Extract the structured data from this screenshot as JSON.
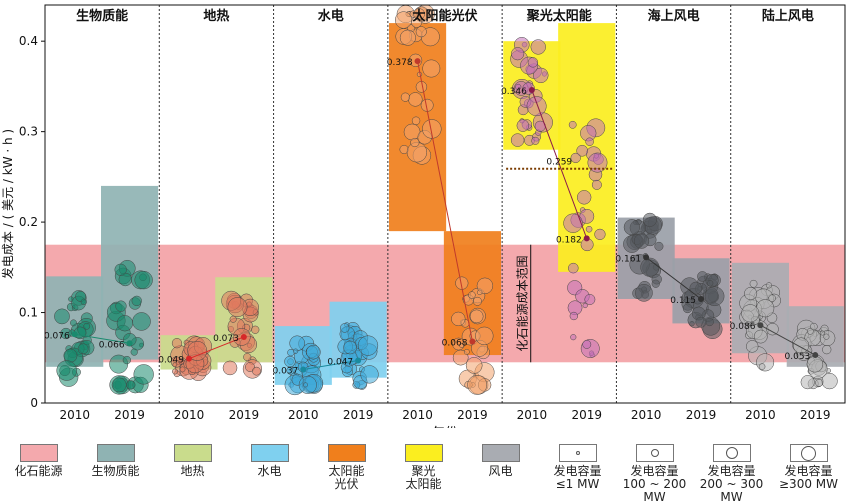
{
  "chart_data": {
    "type": "scatter",
    "ylabel": "发电成本 / ( 美元 / kW · h )",
    "xlabel": "年份",
    "ylim": [
      0,
      0.44
    ],
    "yticks": [
      "0",
      "0.1",
      "0.2",
      "0.3",
      "0.4"
    ],
    "grid": false,
    "legend_placement": "bottom",
    "fossil_range": [
      0.045,
      0.175
    ],
    "fossil_range_label": "化石能源成本范围",
    "panels": [
      {
        "name": "生物质能",
        "color": "#1a8a6e",
        "box_color": "#8fb3b3",
        "years": [
          "2010",
          "2019"
        ],
        "medians": [
          0.076,
          0.066
        ],
        "median_labels": [
          "0.076",
          "0.066"
        ],
        "boxes": [
          [
            0.04,
            0.14
          ],
          [
            0.048,
            0.24
          ]
        ],
        "median_marker_color": "#1a8a6e"
      },
      {
        "name": "地热",
        "color": "#e07a5f",
        "box_color": "#c9dc8c",
        "years": [
          "2010",
          "2019"
        ],
        "medians": [
          0.049,
          0.073
        ],
        "median_labels": [
          "0.049",
          "0.073"
        ],
        "boxes": [
          [
            0.037,
            0.075
          ],
          [
            0.045,
            0.139
          ]
        ],
        "median_marker_color": "#d62728"
      },
      {
        "name": "水电",
        "color": "#3fa9d9",
        "box_color": "#7fd0ef",
        "years": [
          "2010",
          "2019"
        ],
        "medians": [
          0.037,
          0.047
        ],
        "median_labels": [
          "0.037",
          "0.047"
        ],
        "boxes": [
          [
            0.02,
            0.085
          ],
          [
            0.028,
            0.112
          ]
        ],
        "median_marker_color": "#1a8a9e"
      },
      {
        "name": "太阳能光伏",
        "color": "#f2a36b",
        "box_color": "#f07f1c",
        "years": [
          "2010",
          "2019"
        ],
        "medians": [
          0.378,
          0.068
        ],
        "median_labels": [
          "0.378",
          "0.068"
        ],
        "boxes": [
          [
            0.19,
            0.42
          ],
          [
            0.053,
            0.19
          ]
        ],
        "median_marker_color": "#c0392b"
      },
      {
        "name": "聚光太阳能",
        "color": "#c26fb8",
        "box_color": "#fbee1f",
        "years": [
          "2010",
          "2019"
        ],
        "medians": [
          0.346,
          0.182
        ],
        "median_labels": [
          "0.346",
          "0.182"
        ],
        "boxes": [
          [
            0.28,
            0.4
          ],
          [
            0.145,
            0.42
          ]
        ],
        "median_marker_color": "#8b1a4a",
        "extra_line": {
          "value": 0.259,
          "label": "0.259"
        }
      },
      {
        "name": "海上风电",
        "color": "#555a5f",
        "box_color": "#9aa0a8",
        "years": [
          "2010",
          "2019"
        ],
        "medians": [
          0.161,
          0.115
        ],
        "median_labels": [
          "0.161",
          "0.115"
        ],
        "boxes": [
          [
            0.115,
            0.205
          ],
          [
            0.088,
            0.16
          ]
        ],
        "median_marker_color": "#333"
      },
      {
        "name": "陆上风电",
        "color": "#b5b5b5",
        "box_color": "#a9acb2",
        "years": [
          "2010",
          "2019"
        ],
        "medians": [
          0.086,
          0.053
        ],
        "median_labels": [
          "0.086",
          "0.053"
        ],
        "boxes": [
          [
            0.055,
            0.155
          ],
          [
            0.04,
            0.107
          ]
        ],
        "median_marker_color": "#444"
      }
    ]
  },
  "legend": [
    {
      "label": "化石能源",
      "swatch": "#f4a9ad",
      "kind": "box"
    },
    {
      "label": "生物质能",
      "swatch": "#8fb3b3",
      "kind": "box"
    },
    {
      "label": "地热",
      "swatch": "#c9dc8c",
      "kind": "box"
    },
    {
      "label": "水电",
      "swatch": "#7fd0ef",
      "kind": "box"
    },
    {
      "label": "太阳能\n光伏",
      "swatch": "#f07f1c",
      "kind": "box"
    },
    {
      "label": "聚光\n太阳能",
      "swatch": "#fbee1f",
      "kind": "box"
    },
    {
      "label": "风电",
      "swatch": "#a9acb2",
      "kind": "box"
    },
    {
      "label": "发电容量\n≤1 MW",
      "kind": "circle",
      "size": 4
    },
    {
      "label": "发电容量\n100 ~ 200 MW",
      "kind": "circle",
      "size": 8
    },
    {
      "label": "发电容量\n200 ~ 300 MW",
      "kind": "circle",
      "size": 12
    },
    {
      "label": "发电容量\n≥300 MW",
      "kind": "circle",
      "size": 15
    }
  ]
}
